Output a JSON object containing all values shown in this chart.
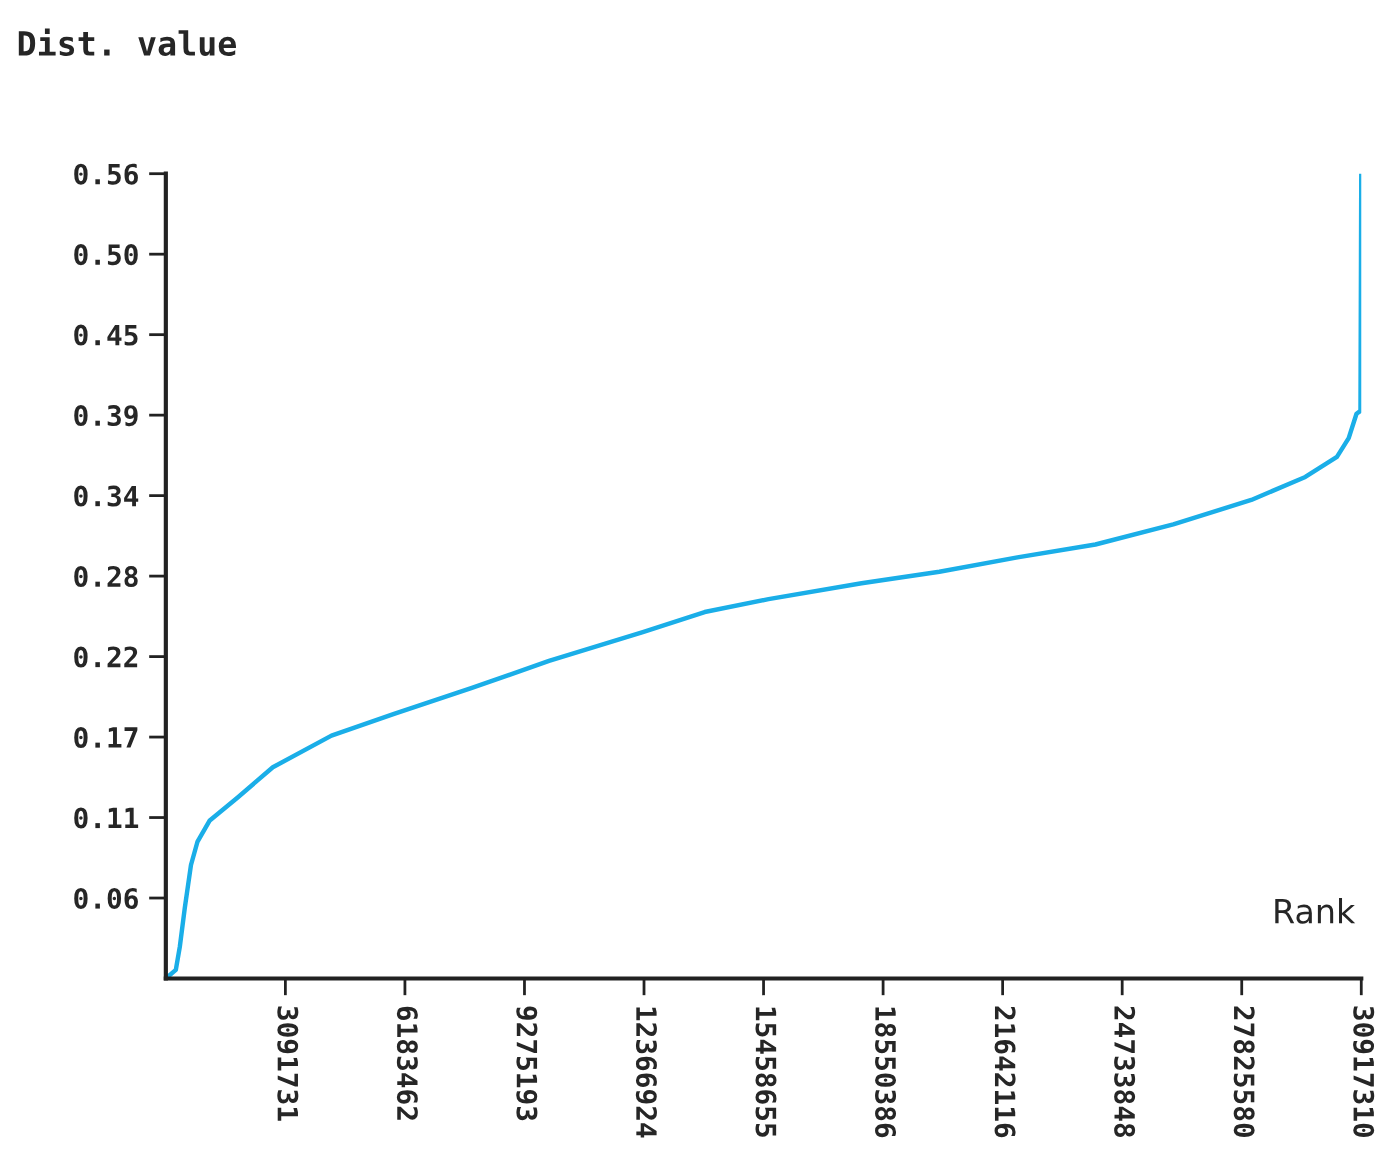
{
  "chart_data": {
    "type": "line",
    "ylabel": "Dist. value",
    "xlabel": "Rank",
    "x": [
      0,
      258000,
      361000,
      490000,
      650000,
      816000,
      1136000,
      1858000,
      2767000,
      4284000,
      5884000,
      7897000,
      9910000,
      12336000,
      13936000,
      15588000,
      17993000,
      20006000,
      22024000,
      24042000,
      26055000,
      28073000,
      29470000,
      30288000,
      30592000,
      30794000,
      30897000,
      30917310
    ],
    "series": [
      {
        "color": "#1aaee8",
        "values": [
          0,
          0.006,
          0.022,
          0.049,
          0.079,
          0.095,
          0.11,
          0.126,
          0.147,
          0.169,
          0.184,
          0.202,
          0.221,
          0.241,
          0.255,
          0.264,
          0.275,
          0.283,
          0.293,
          0.302,
          0.316,
          0.333,
          0.349,
          0.363,
          0.376,
          0.393,
          0.395,
          0.56
        ]
      }
    ],
    "xlim": [
      0,
      30917310
    ],
    "ylim": [
      0,
      0.56
    ],
    "xticks": [
      3091731,
      6183462,
      9275193,
      12366924,
      15458655,
      18550386,
      21642116,
      24733848,
      27825580,
      30917310
    ],
    "yticks": [
      {
        "value": 0.056,
        "label": "0.06"
      },
      {
        "value": 0.112,
        "label": "0.11"
      },
      {
        "value": 0.168,
        "label": "0.17"
      },
      {
        "value": 0.224,
        "label": "0.22"
      },
      {
        "value": 0.28,
        "label": "0.28"
      },
      {
        "value": 0.336,
        "label": "0.34"
      },
      {
        "value": 0.392,
        "label": "0.39"
      },
      {
        "value": 0.448,
        "label": "0.45"
      },
      {
        "value": 0.504,
        "label": "0.50"
      },
      {
        "value": 0.56,
        "label": "0.56"
      }
    ],
    "grid": false,
    "marker": "none",
    "line_style": "solid"
  }
}
